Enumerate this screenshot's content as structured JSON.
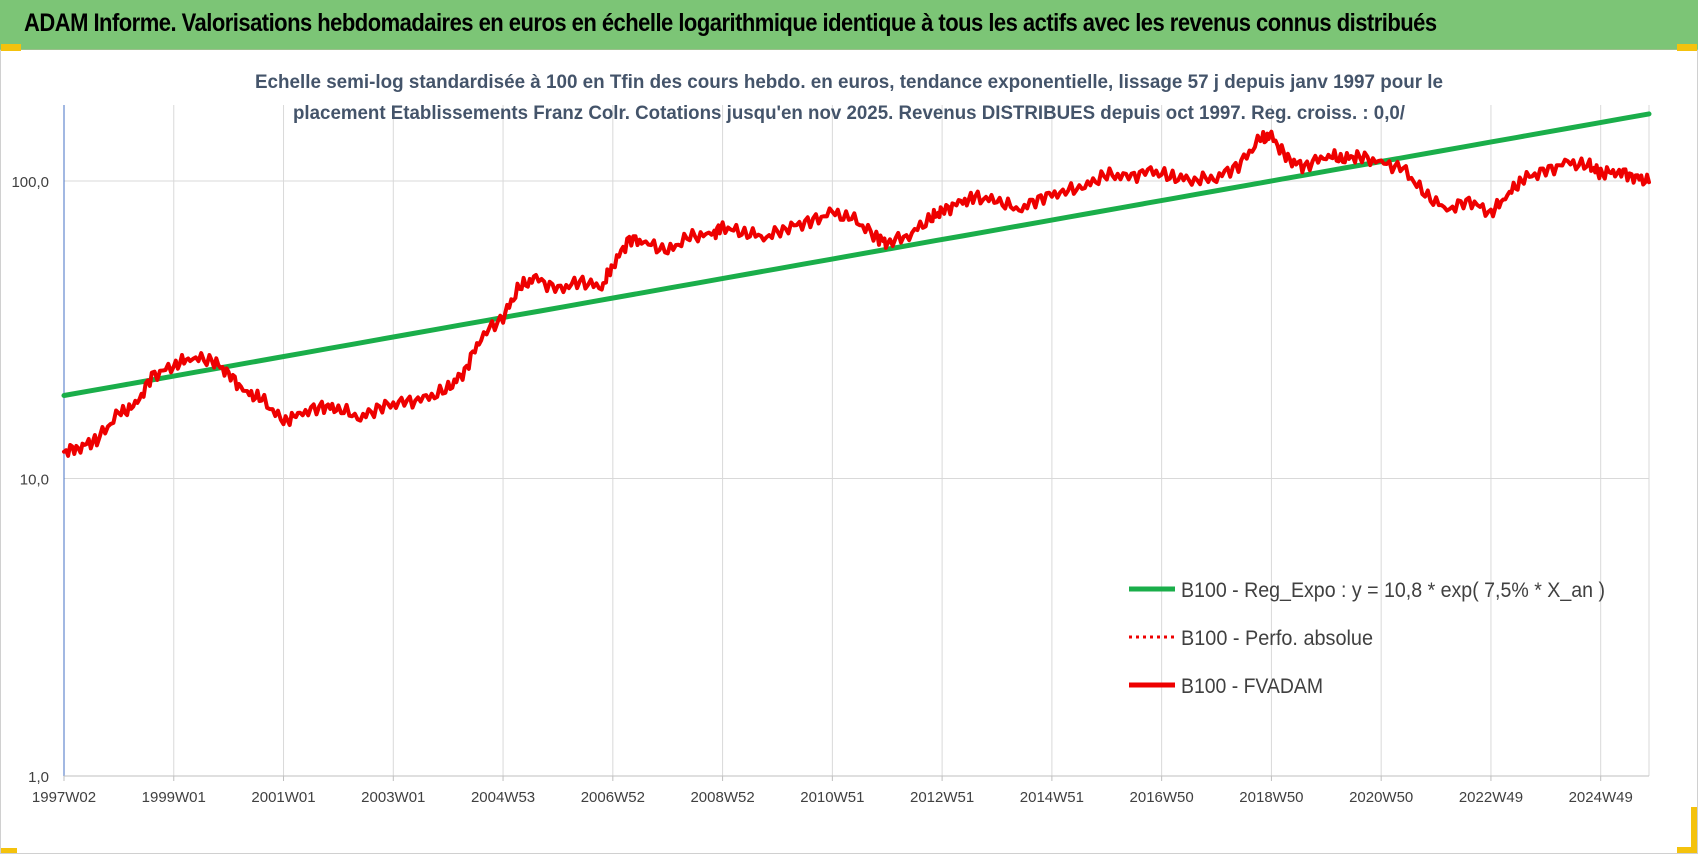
{
  "banner": {
    "title": "ADAM Informe. Valorisations hebdomadaires en euros en échelle logarithmique identique à tous les actifs avec les revenus connus distribués"
  },
  "colors": {
    "banner_bg": "#7cc576",
    "regression_line": "#1aae4a",
    "fvadam_line": "#ee0000",
    "perfo_line": "#ee0000",
    "grid": "#d9d9d9",
    "corner_marks": "#f4c20d"
  },
  "chart_data": {
    "type": "line",
    "title_lines": [
      "Echelle semi-log standardisée à 100 en Tfin des cours hebdo. en euros, tendance exponentielle, lissage 57 j depuis janv 1997 pour le",
      "placement Etablissements Franz Colr. Cotations jusqu'en nov 2025. Revenus DISTRIBUES depuis oct 1997. Reg. croiss. : 0,0/"
    ],
    "y_scale": "log",
    "ylim": [
      1,
      180
    ],
    "y_ticks": [
      {
        "value": 1,
        "label": "1,0"
      },
      {
        "value": 10,
        "label": "10,0"
      },
      {
        "value": 100,
        "label": "100,0"
      }
    ],
    "xlim": [
      1997.0,
      2025.88
    ],
    "x_ticks": [
      {
        "value": 1997.0,
        "label": "1997W02"
      },
      {
        "value": 1999.0,
        "label": "1999W01"
      },
      {
        "value": 2001.0,
        "label": "2001W01"
      },
      {
        "value": 2003.0,
        "label": "2003W01"
      },
      {
        "value": 2005.0,
        "label": "2004W53"
      },
      {
        "value": 2007.0,
        "label": "2006W52"
      },
      {
        "value": 2009.0,
        "label": "2008W52"
      },
      {
        "value": 2011.0,
        "label": "2010W51"
      },
      {
        "value": 2013.0,
        "label": "2012W51"
      },
      {
        "value": 2015.0,
        "label": "2014W51"
      },
      {
        "value": 2017.0,
        "label": "2016W50"
      },
      {
        "value": 2019.0,
        "label": "2018W50"
      },
      {
        "value": 2021.0,
        "label": "2020W50"
      },
      {
        "value": 2023.0,
        "label": "2022W49"
      },
      {
        "value": 2025.0,
        "label": "2024W49"
      }
    ],
    "grid": true,
    "legend_position": "bottom-right",
    "series": [
      {
        "name": "B100 - Reg_Expo : y = 10,8 * exp( 7,5% *  X_an )",
        "style": "solid",
        "color": "#1aae4a",
        "x": [
          1997.0,
          2025.88
        ],
        "y": [
          19.0,
          168.0
        ]
      },
      {
        "name": "B100 - Perfo. absolue",
        "style": "dotted",
        "color": "#ee0000",
        "x": [],
        "y": []
      },
      {
        "name": "B100 - FVADAM",
        "style": "solid",
        "color": "#ee0000",
        "x": [
          1997.0,
          1997.3,
          1997.6,
          1998.0,
          1998.3,
          1998.6,
          1999.0,
          1999.3,
          1999.7,
          2000.0,
          2000.3,
          2000.6,
          2001.0,
          2001.3,
          2001.7,
          2002.0,
          2002.4,
          2002.8,
          2003.2,
          2003.6,
          2004.0,
          2004.3,
          2004.6,
          2005.0,
          2005.3,
          2005.6,
          2006.0,
          2006.4,
          2006.8,
          2007.0,
          2007.3,
          2007.6,
          2008.0,
          2008.4,
          2008.8,
          2009.0,
          2009.4,
          2009.8,
          2010.2,
          2010.6,
          2011.0,
          2011.4,
          2011.8,
          2012.0,
          2012.4,
          2012.8,
          2013.0,
          2013.3,
          2013.6,
          2014.0,
          2014.4,
          2014.8,
          2015.2,
          2015.6,
          2016.0,
          2016.4,
          2016.8,
          2017.2,
          2017.6,
          2018.0,
          2018.4,
          2018.8,
          2019.0,
          2019.3,
          2019.6,
          2020.0,
          2020.3,
          2020.6,
          2021.0,
          2021.4,
          2021.8,
          2022.2,
          2022.6,
          2023.0,
          2023.3,
          2023.6,
          2024.0,
          2024.4,
          2024.8,
          2025.0,
          2025.3,
          2025.6,
          2025.88
        ],
        "y": [
          12.3,
          12.8,
          13.5,
          16.5,
          17.5,
          22.0,
          24.0,
          25.5,
          25.0,
          22.5,
          19.5,
          18.5,
          15.5,
          16.5,
          17.5,
          17.2,
          16.0,
          17.5,
          18.0,
          18.5,
          20.0,
          23.0,
          30.0,
          35.0,
          44.0,
          47.0,
          43.0,
          46.0,
          44.0,
          52.0,
          64.0,
          62.0,
          58.0,
          65.0,
          66.0,
          70.0,
          67.0,
          65.0,
          70.0,
          73.0,
          78.0,
          74.0,
          65.0,
          62.0,
          66.0,
          75.0,
          79.0,
          84.0,
          88.0,
          86.0,
          80.0,
          88.0,
          92.0,
          96.0,
          105.0,
          103.0,
          108.0,
          103.0,
          101.0,
          103.0,
          113.0,
          138.0,
          141.0,
          118.0,
          112.0,
          122.0,
          119.0,
          121.0,
          115.0,
          110.0,
          90.0,
          80.0,
          86.0,
          78.0,
          90.0,
          102.0,
          108.0,
          115.0,
          112.0,
          106.0,
          108.0,
          104.0,
          99.0
        ]
      }
    ]
  }
}
